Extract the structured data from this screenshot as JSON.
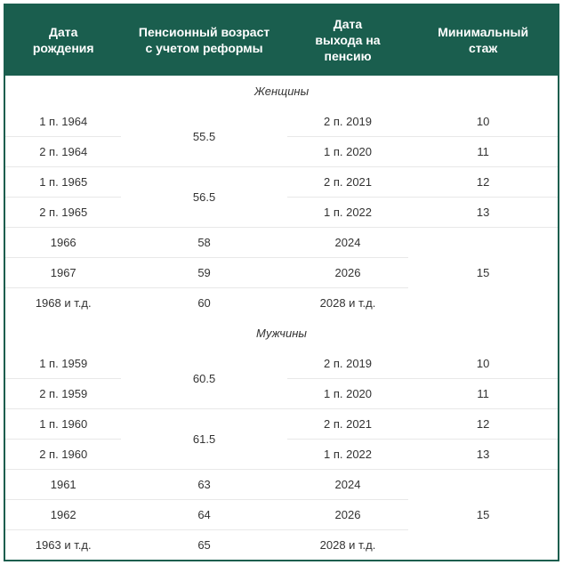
{
  "headers": {
    "col1_line1": "Дата",
    "col1_line2": "рождения",
    "col2_line1": "Пенсионный возраст",
    "col2_line2": "с учетом реформы",
    "col3_line1": "Дата",
    "col3_line2": "выхода на",
    "col3_line3": "пенсию",
    "col4_line1": "Минимальный",
    "col4_line2": "стаж"
  },
  "sections": {
    "women": "Женщины",
    "men": "Мужчины"
  },
  "women_rows": [
    {
      "birth": "1 п. 1964",
      "age": "55.5",
      "age_rowspan": 2,
      "exit": "2 п. 2019",
      "stage": "10",
      "stage_rowspan": 1
    },
    {
      "birth": "2 п. 1964",
      "exit": "1 п. 2020",
      "stage": "11",
      "stage_rowspan": 1
    },
    {
      "birth": "1 п. 1965",
      "age": "56.5",
      "age_rowspan": 2,
      "exit": "2 п. 2021",
      "stage": "12",
      "stage_rowspan": 1
    },
    {
      "birth": "2 п. 1965",
      "exit": "1 п. 2022",
      "stage": "13",
      "stage_rowspan": 1
    },
    {
      "birth": "1966",
      "age": "58",
      "age_rowspan": 1,
      "exit": "2024",
      "stage": "15",
      "stage_rowspan": 3
    },
    {
      "birth": "1967",
      "age": "59",
      "age_rowspan": 1,
      "exit": "2026"
    },
    {
      "birth": "1968 и т.д.",
      "age": "60",
      "age_rowspan": 1,
      "exit": "2028 и т.д."
    }
  ],
  "men_rows": [
    {
      "birth": "1 п. 1959",
      "age": "60.5",
      "age_rowspan": 2,
      "exit": "2 п. 2019",
      "stage": "10",
      "stage_rowspan": 1
    },
    {
      "birth": "2 п. 1959",
      "exit": "1 п. 2020",
      "stage": "11",
      "stage_rowspan": 1
    },
    {
      "birth": "1 п. 1960",
      "age": "61.5",
      "age_rowspan": 2,
      "exit": "2 п. 2021",
      "stage": "12",
      "stage_rowspan": 1
    },
    {
      "birth": "2 п. 1960",
      "exit": "1 п. 2022",
      "stage": "13",
      "stage_rowspan": 1
    },
    {
      "birth": "1961",
      "age": "63",
      "age_rowspan": 1,
      "exit": "2024",
      "stage": "15",
      "stage_rowspan": 3
    },
    {
      "birth": "1962",
      "age": "64",
      "age_rowspan": 1,
      "exit": "2026"
    },
    {
      "birth": "1963 и т.д.",
      "age": "65",
      "age_rowspan": 1,
      "exit": "2028 и т.д."
    }
  ],
  "styling": {
    "header_bg": "#1a5e4e",
    "header_color": "#ffffff",
    "border_color": "#e8e8e8",
    "outer_border": "#1a5e4e",
    "text_color": "#333333",
    "header_fontsize": 14,
    "cell_fontsize": 13
  }
}
